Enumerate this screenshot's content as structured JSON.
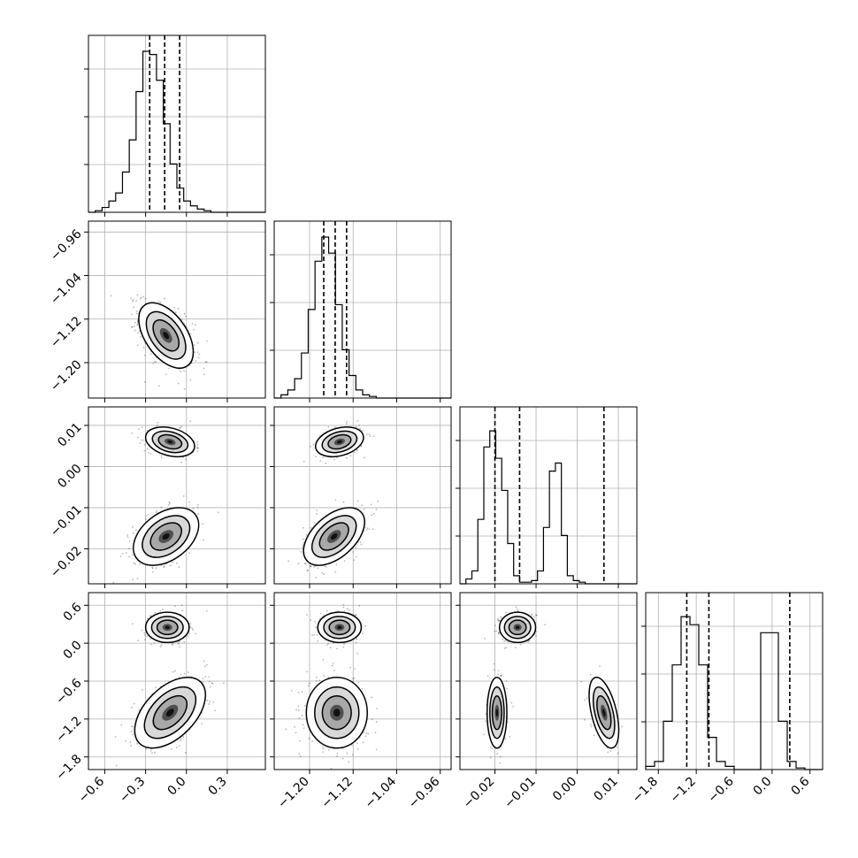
{
  "chart_data": {
    "type": "corner",
    "grid": true,
    "params": [
      {
        "name": "",
        "range": [
          -0.72,
          0.58
        ],
        "ticks": [
          {
            "v": -0.6,
            "label": "−0.6"
          },
          {
            "v": -0.3,
            "label": "−0.3"
          },
          {
            "v": 0.0,
            "label": "0.0"
          },
          {
            "v": 0.3,
            "label": "0.3"
          }
        ]
      },
      {
        "name": "",
        "range": [
          -1.265,
          -0.94
        ],
        "ticks": [
          {
            "v": -1.2,
            "label": "−1.20"
          },
          {
            "v": -1.12,
            "label": "−1.12"
          },
          {
            "v": -1.04,
            "label": "−1.04"
          },
          {
            "v": -0.96,
            "label": "−0.96"
          }
        ]
      },
      {
        "name": "",
        "range": [
          -0.0285,
          0.0145
        ],
        "ticks": [
          {
            "v": -0.02,
            "label": "−0.02"
          },
          {
            "v": -0.01,
            "label": "−0.01"
          },
          {
            "v": 0.0,
            "label": "0.00"
          },
          {
            "v": 0.01,
            "label": "0.01"
          }
        ]
      },
      {
        "name": "",
        "range": [
          -2.0,
          0.8
        ],
        "ticks": [
          {
            "v": -1.8,
            "label": "−1.8"
          },
          {
            "v": -1.2,
            "label": "−1.2"
          },
          {
            "v": -0.6,
            "label": "−0.6"
          },
          {
            "v": 0.0,
            "label": "0.0"
          },
          {
            "v": 0.6,
            "label": "0.6"
          }
        ]
      }
    ],
    "histograms": [
      {
        "edges_start": -0.72,
        "bin_width": 0.05,
        "counts": [
          0,
          0.01,
          0.03,
          0.07,
          0.12,
          0.25,
          0.45,
          0.75,
          1.0,
          0.98,
          0.82,
          0.55,
          0.3,
          0.15,
          0.07,
          0.04,
          0.02,
          0.01,
          0,
          0,
          0,
          0,
          0,
          0,
          0,
          0
        ],
        "quantiles": [
          -0.27,
          -0.16,
          -0.05
        ]
      },
      {
        "edges_start": -1.265,
        "bin_width": 0.0125,
        "counts": [
          0,
          0.02,
          0.05,
          0.12,
          0.28,
          0.55,
          0.85,
          1.0,
          0.9,
          0.58,
          0.3,
          0.14,
          0.05,
          0.02,
          0.01,
          0,
          0,
          0,
          0,
          0,
          0,
          0,
          0,
          0,
          0,
          0
        ],
        "quantiles": [
          -1.174,
          -1.153,
          -1.132
        ]
      },
      {
        "edges_start": -0.0285,
        "bin_width": 0.00145,
        "counts": [
          0,
          0.03,
          0.08,
          0.4,
          0.85,
          0.95,
          0.78,
          0.58,
          0.25,
          0.05,
          0.01,
          0.01,
          0.02,
          0.08,
          0.35,
          0.7,
          0.75,
          0.3,
          0.05,
          0.02,
          0.01,
          0,
          0,
          0,
          0,
          0,
          0,
          0,
          0,
          0
        ],
        "quantiles": [
          -0.02,
          -0.014,
          0.0065
        ]
      },
      {
        "edges_start": -2.0,
        "bin_width": 0.14,
        "counts": [
          0.02,
          0.05,
          0.3,
          0.65,
          0.95,
          0.9,
          0.65,
          0.2,
          0.05,
          0.02,
          0,
          0,
          0,
          0.85,
          0.85,
          0.3,
          0.05,
          0.01,
          0,
          0
        ],
        "quantiles": [
          -1.35,
          -1.0,
          0.28
        ]
      }
    ],
    "clusters": [
      {
        "p0": 0,
        "p1": 1,
        "points": [
          {
            "x": -0.15,
            "y": -1.15,
            "sx": 0.1,
            "sy": 0.03,
            "rho": -0.5,
            "w": 1.0
          }
        ]
      },
      {
        "p0": 0,
        "p1": 2,
        "points": [
          {
            "x": -0.12,
            "y": 0.006,
            "sx": 0.09,
            "sy": 0.0018,
            "rho": -0.3,
            "w": 0.4
          },
          {
            "x": -0.15,
            "y": -0.017,
            "sx": 0.12,
            "sy": 0.0035,
            "rho": 0.4,
            "w": 0.6
          }
        ]
      },
      {
        "p0": 1,
        "p1": 2,
        "points": [
          {
            "x": -1.145,
            "y": 0.006,
            "sx": 0.022,
            "sy": 0.0018,
            "rho": 0.3,
            "w": 0.4
          },
          {
            "x": -1.155,
            "y": -0.017,
            "sx": 0.028,
            "sy": 0.0035,
            "rho": 0.5,
            "w": 0.6
          }
        ]
      },
      {
        "p0": 0,
        "p1": 3,
        "points": [
          {
            "x": -0.14,
            "y": 0.25,
            "sx": 0.08,
            "sy": 0.12,
            "rho": 0.0,
            "w": 0.4
          },
          {
            "x": -0.12,
            "y": -1.1,
            "sx": 0.13,
            "sy": 0.28,
            "rho": 0.5,
            "w": 0.6
          }
        ]
      },
      {
        "p0": 1,
        "p1": 3,
        "points": [
          {
            "x": -1.145,
            "y": 0.25,
            "sx": 0.02,
            "sy": 0.12,
            "rho": 0.0,
            "w": 0.4
          },
          {
            "x": -1.15,
            "y": -1.1,
            "sx": 0.028,
            "sy": 0.28,
            "rho": 0.0,
            "w": 0.6
          }
        ]
      },
      {
        "p0": 2,
        "p1": 3,
        "points": [
          {
            "x": -0.0145,
            "y": 0.25,
            "sx": 0.0022,
            "sy": 0.12,
            "rho": 0.0,
            "w": 0.4
          },
          {
            "x": -0.0195,
            "y": -1.1,
            "sx": 0.0012,
            "sy": 0.28,
            "rho": 0.0,
            "w": 0.3
          },
          {
            "x": 0.0065,
            "y": -1.1,
            "sx": 0.0018,
            "sy": 0.28,
            "rho": -0.5,
            "w": 0.3
          }
        ]
      }
    ]
  }
}
